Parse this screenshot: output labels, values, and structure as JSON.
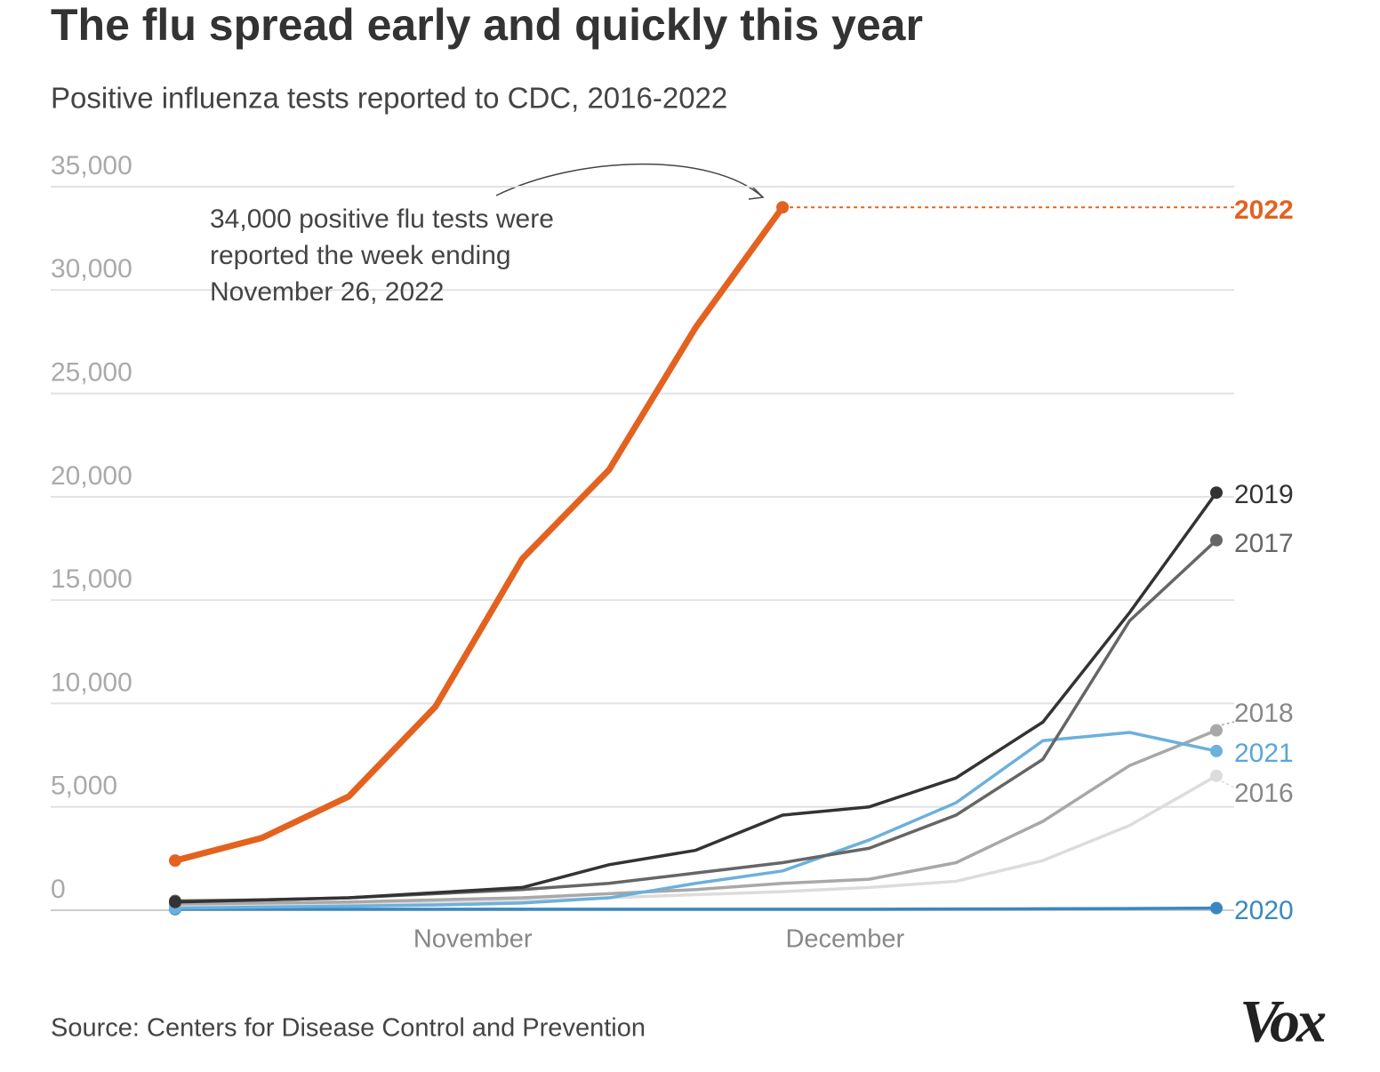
{
  "chart_data": {
    "type": "line",
    "title": "The flu spread early and quickly this year",
    "subtitle": "Positive influenza tests reported to CDC, 2016-2022",
    "annotation": [
      "34,000 positive flu tests were",
      "reported the week ending",
      "November 26, 2022"
    ],
    "source": "Source: Centers for Disease Control and Prevention",
    "logo": "Vox",
    "x": [
      0,
      1,
      2,
      3,
      4,
      5,
      6,
      7,
      8,
      9,
      10,
      11,
      12
    ],
    "xlim": [
      0,
      12
    ],
    "xticks": [
      {
        "value": 3.43,
        "label": "November"
      },
      {
        "value": 7.72,
        "label": "December"
      }
    ],
    "ylim": [
      0,
      35000
    ],
    "yticks": [
      {
        "value": 0,
        "label": "0"
      },
      {
        "value": 5000,
        "label": "5,000"
      },
      {
        "value": 10000,
        "label": "10,000"
      },
      {
        "value": 15000,
        "label": "15,000"
      },
      {
        "value": 20000,
        "label": "20,000"
      },
      {
        "value": 25000,
        "label": "25,000"
      },
      {
        "value": 30000,
        "label": "30,000"
      },
      {
        "value": 35000,
        "label": "35,000"
      }
    ],
    "grid": true,
    "series": [
      {
        "name": "2016",
        "color": "#dcdcdc",
        "values": [
          200,
          250,
          300,
          350,
          450,
          600,
          750,
          900,
          1100,
          1400,
          2400,
          4100,
          6500
        ]
      },
      {
        "name": "2018",
        "color": "#a8a8a8",
        "values": [
          300,
          350,
          400,
          500,
          600,
          800,
          1000,
          1300,
          1500,
          2300,
          4300,
          7000,
          8700
        ]
      },
      {
        "name": "2020",
        "color": "#3a87c0",
        "values": [
          50,
          50,
          50,
          50,
          50,
          50,
          50,
          50,
          50,
          60,
          70,
          80,
          100
        ]
      },
      {
        "name": "2021",
        "color": "#6cb0dc",
        "values": [
          100,
          150,
          200,
          250,
          350,
          600,
          1300,
          1900,
          3400,
          5200,
          8200,
          8600,
          7700
        ]
      },
      {
        "name": "2017",
        "color": "#666666",
        "values": [
          450,
          500,
          600,
          800,
          1000,
          1300,
          1800,
          2300,
          3000,
          4600,
          7300,
          14000,
          17900
        ]
      },
      {
        "name": "2019",
        "color": "#333333",
        "values": [
          400,
          500,
          600,
          850,
          1100,
          2200,
          2900,
          4600,
          5000,
          6400,
          9100,
          14400,
          20200
        ]
      },
      {
        "name": "2022",
        "color": "#e3621f",
        "values": [
          2400,
          3500,
          5500,
          9850,
          17000,
          21300,
          28200,
          34000,
          null,
          null,
          null,
          null,
          null
        ]
      }
    ]
  }
}
